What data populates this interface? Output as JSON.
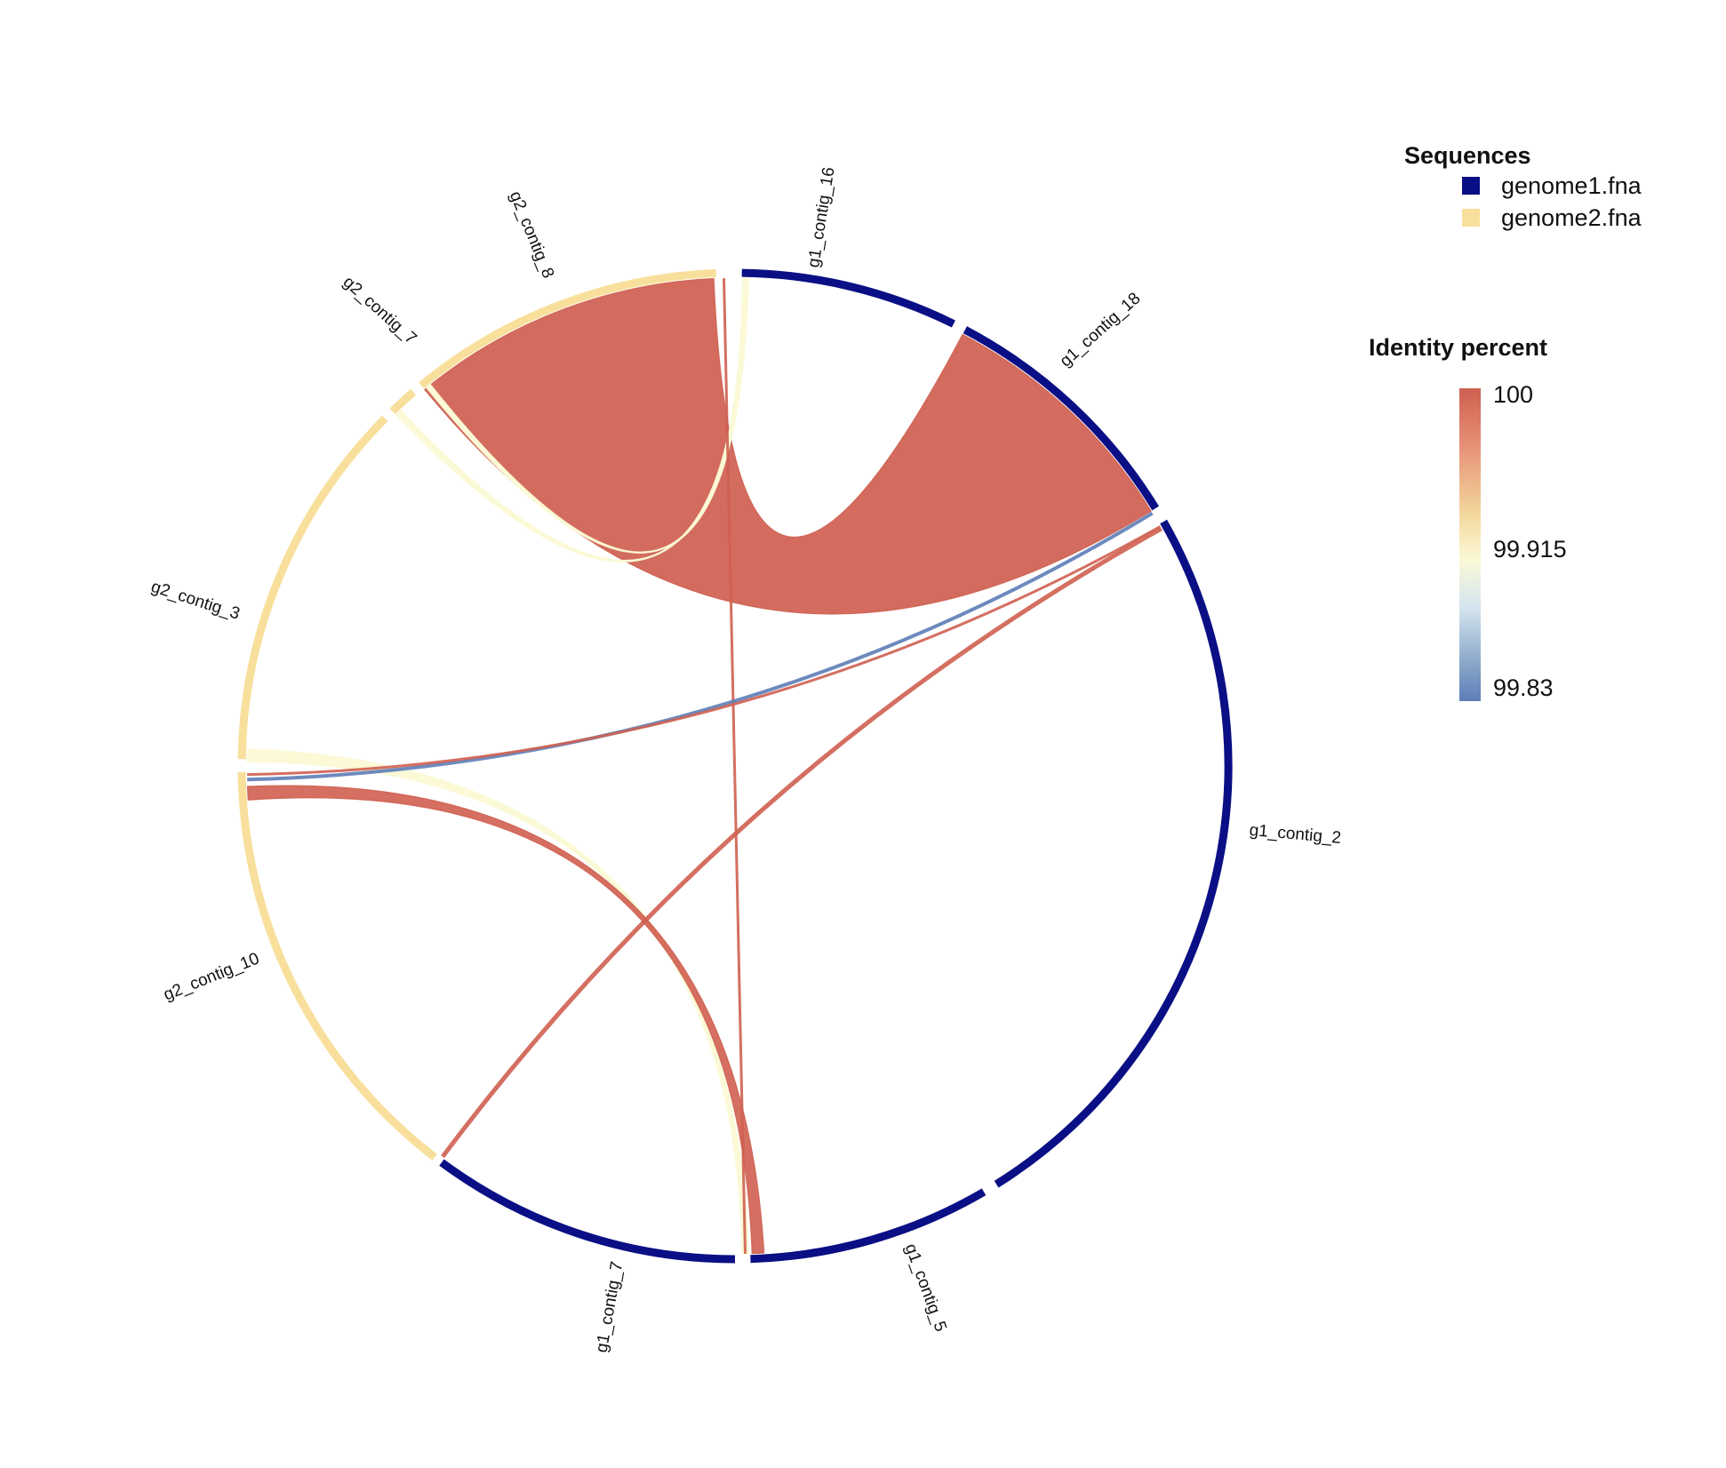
{
  "colors": {
    "genome1": "#0a0f85",
    "genome2": "#f8df9b",
    "identity_high": "#cf5f50",
    "identity_mid": "#fbf9d6",
    "identity_low": "#5d7db7"
  },
  "sequences": [
    {
      "name": "g1_contig_16",
      "genome": "genome1.fna"
    },
    {
      "name": "g1_contig_18",
      "genome": "genome1.fna"
    },
    {
      "name": "g1_contig_2",
      "genome": "genome1.fna"
    },
    {
      "name": "g1_contig_5",
      "genome": "genome1.fna"
    },
    {
      "name": "g1_contig_7",
      "genome": "genome1.fna"
    },
    {
      "name": "g2_contig_10",
      "genome": "genome2.fna"
    },
    {
      "name": "g2_contig_3",
      "genome": "genome2.fna"
    },
    {
      "name": "g2_contig_7",
      "genome": "genome2.fna"
    },
    {
      "name": "g2_contig_8",
      "genome": "genome2.fna"
    }
  ],
  "legend_sequences": {
    "title": "Sequences",
    "entries": [
      "genome1.fna",
      "genome2.fna"
    ]
  },
  "legend_identity": {
    "title": "Identity percent",
    "ticks": [
      "100",
      "99.915",
      "99.83"
    ]
  }
}
